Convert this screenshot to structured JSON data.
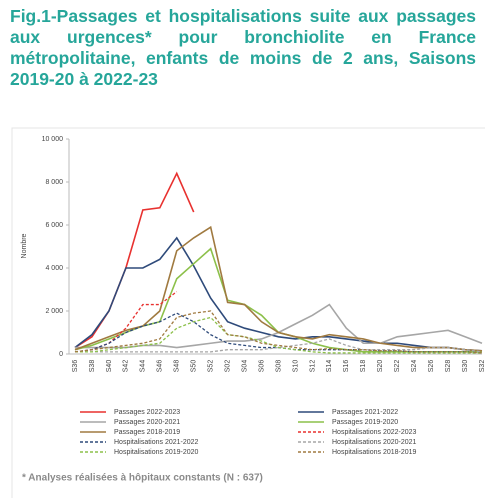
{
  "chart_data": {
    "type": "line",
    "title": "Fig.1-Passages et hospitalisations suite aux passages aux urgences* pour bronchiolite en France métropolitaine, enfants de moins de 2 ans, Saisons 2019-20 à 2022-23",
    "y_label": "Nombre",
    "footnote": "* Analyses réalisées à hôpitaux constants (N : 637)",
    "categories": [
      "S36",
      "S38",
      "S40",
      "S42",
      "S44",
      "S46",
      "S48",
      "S50",
      "S52",
      "S02",
      "S04",
      "S06",
      "S08",
      "S10",
      "S12",
      "S14",
      "S16",
      "S18",
      "S20",
      "S22",
      "S24",
      "S26",
      "S28",
      "S30",
      "S32"
    ],
    "ylim": [
      0,
      10000
    ],
    "yticks": [
      0,
      {
        "value": 2000,
        "label": "2 000"
      },
      {
        "value": 4000,
        "label": "4 000"
      },
      {
        "value": 6000,
        "label": "6 000"
      },
      {
        "value": 8000,
        "label": "8 000"
      },
      {
        "value": 10000,
        "label": "10 000"
      }
    ],
    "grid": false,
    "series": [
      {
        "name": "Passages 2022-2023",
        "color": "#e8312f",
        "dashed": false,
        "values": [
          300,
          800,
          2000,
          4000,
          6700,
          6800,
          8400,
          6600,
          null,
          null,
          null,
          null,
          null,
          null,
          null,
          null,
          null,
          null,
          null,
          null,
          null,
          null,
          null,
          null,
          null
        ]
      },
      {
        "name": "Passages 2021-2022",
        "color": "#2e4a7a",
        "dashed": false,
        "values": [
          300,
          900,
          2000,
          4000,
          4000,
          4400,
          5400,
          4100,
          2600,
          1500,
          1200,
          1000,
          800,
          700,
          800,
          800,
          700,
          600,
          500,
          500,
          400,
          300,
          300,
          200,
          150
        ]
      },
      {
        "name": "Passages 2020-2021",
        "color": "#a6a6a6",
        "dashed": false,
        "values": [
          300,
          300,
          300,
          300,
          400,
          400,
          300,
          400,
          500,
          600,
          600,
          700,
          1000,
          1400,
          1800,
          2300,
          1200,
          500,
          500,
          800,
          900,
          1000,
          1100,
          800,
          500
        ]
      },
      {
        "name": "Passages 2019-2020",
        "color": "#8cc04a",
        "dashed": false,
        "values": [
          200,
          400,
          700,
          1000,
          1300,
          1500,
          3500,
          4200,
          4900,
          2500,
          2300,
          1800,
          1000,
          800,
          500,
          300,
          200,
          100,
          100,
          100,
          100,
          100,
          100,
          100,
          100
        ]
      },
      {
        "name": "Passages 2018-2019",
        "color": "#a07a40",
        "dashed": false,
        "values": [
          200,
          500,
          800,
          1100,
          1300,
          2000,
          4800,
          5400,
          5900,
          2400,
          2300,
          1500,
          1000,
          800,
          700,
          900,
          800,
          700,
          500,
          400,
          300,
          300,
          300,
          200,
          150
        ]
      },
      {
        "name": "Hospitalisations 2022-2023",
        "color": "#e8312f",
        "dashed": true,
        "values": [
          100,
          200,
          500,
          1200,
          2300,
          2300,
          2900,
          null,
          null,
          null,
          null,
          null,
          null,
          null,
          null,
          null,
          null,
          null,
          null,
          null,
          null,
          null,
          null,
          null,
          null
        ]
      },
      {
        "name": "Hospitalisations 2021-2022",
        "color": "#2e4a7a",
        "dashed": true,
        "values": [
          100,
          200,
          500,
          1000,
          1300,
          1500,
          1900,
          1500,
          900,
          500,
          400,
          300,
          300,
          200,
          200,
          200,
          200,
          200,
          150,
          150,
          100,
          100,
          100,
          100,
          50
        ]
      },
      {
        "name": "Hospitalisations 2020-2021",
        "color": "#a6a6a6",
        "dashed": true,
        "values": [
          100,
          100,
          100,
          100,
          100,
          100,
          100,
          100,
          100,
          200,
          200,
          200,
          300,
          400,
          500,
          700,
          400,
          200,
          200,
          200,
          200,
          300,
          300,
          200,
          100
        ]
      },
      {
        "name": "Hospitalisations 2019-2020",
        "color": "#8cc04a",
        "dashed": true,
        "values": [
          100,
          100,
          200,
          300,
          400,
          500,
          1200,
          1500,
          1700,
          900,
          800,
          600,
          300,
          200,
          100,
          50,
          50,
          50,
          50,
          50,
          50,
          50,
          50,
          50,
          50
        ]
      },
      {
        "name": "Hospitalisations 2018-2019",
        "color": "#a07a40",
        "dashed": true,
        "values": [
          100,
          200,
          300,
          400,
          500,
          700,
          1700,
          1900,
          2000,
          900,
          800,
          500,
          400,
          300,
          200,
          250,
          200,
          200,
          150,
          150,
          100,
          100,
          100,
          100,
          50
        ]
      }
    ]
  }
}
